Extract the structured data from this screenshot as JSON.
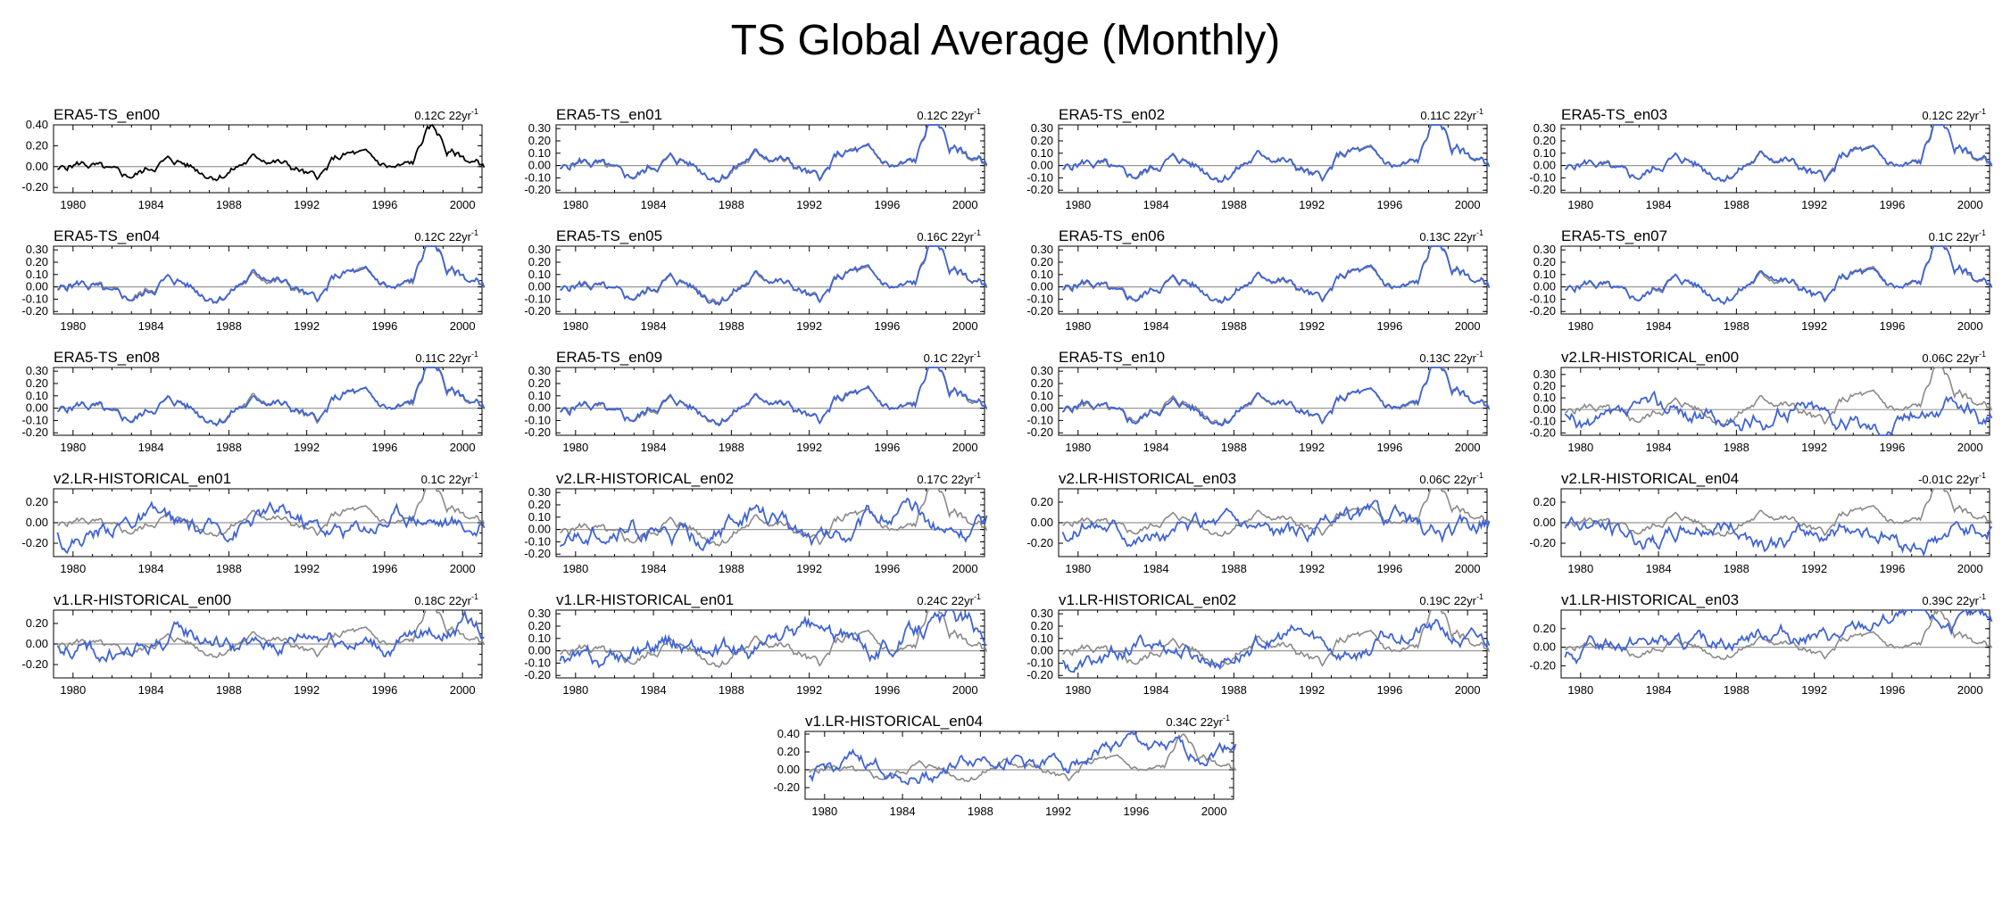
{
  "title": "TS Global Average (Monthly)",
  "colors": {
    "ens": "#3f63d6",
    "ref": "#8a8a8a",
    "era": "#000000",
    "zero": "#999999"
  },
  "chart_data": {
    "type": "line",
    "x_range": [
      1979,
      2001
    ],
    "x_ticks": [
      1980,
      1984,
      1988,
      1992,
      1996,
      2000
    ],
    "panels": [
      {
        "name": "ERA5-TS_en00",
        "trend": "0.12C 22yr",
        "trend_sup": "-1",
        "ylim": [
          -0.25,
          0.4
        ],
        "yticks": [
          -0.2,
          0,
          0.2,
          0.4
        ],
        "ytick_labels": [
          "-0.20",
          "0.00",
          "0.20",
          "0.40"
        ],
        "style": "era",
        "seed": 11,
        "amp": 0.08,
        "offset": 0.0
      },
      {
        "name": "ERA5-TS_en01",
        "trend": "0.12C 22yr",
        "trend_sup": "-1",
        "ylim": [
          -0.22,
          0.33
        ],
        "yticks": [
          -0.2,
          -0.1,
          0,
          0.1,
          0.2,
          0.3
        ],
        "ytick_labels": [
          "-0.20",
          "-0.10",
          "0.00",
          "0.10",
          "0.20",
          "0.30"
        ],
        "style": "era-ens",
        "seed": 12,
        "amp": 0.03,
        "offset": 0.0
      },
      {
        "name": "ERA5-TS_en02",
        "trend": "0.11C 22yr",
        "trend_sup": "-1",
        "ylim": [
          -0.22,
          0.33
        ],
        "yticks": [
          -0.2,
          -0.1,
          0,
          0.1,
          0.2,
          0.3
        ],
        "ytick_labels": [
          "-0.20",
          "-0.10",
          "0.00",
          "0.10",
          "0.20",
          "0.30"
        ],
        "style": "era-ens",
        "seed": 13,
        "amp": 0.03,
        "offset": 0.0
      },
      {
        "name": "ERA5-TS_en03",
        "trend": "0.12C 22yr",
        "trend_sup": "-1",
        "ylim": [
          -0.22,
          0.33
        ],
        "yticks": [
          -0.2,
          -0.1,
          0,
          0.1,
          0.2,
          0.3
        ],
        "ytick_labels": [
          "-0.20",
          "-0.10",
          "0.00",
          "0.10",
          "0.20",
          "0.30"
        ],
        "style": "era-ens",
        "seed": 14,
        "amp": 0.03,
        "offset": 0.0
      },
      {
        "name": "ERA5-TS_en04",
        "trend": "0.12C 22yr",
        "trend_sup": "-1",
        "ylim": [
          -0.22,
          0.33
        ],
        "yticks": [
          -0.2,
          -0.1,
          0,
          0.1,
          0.2,
          0.3
        ],
        "ytick_labels": [
          "-0.20",
          "-0.10",
          "0.00",
          "0.10",
          "0.20",
          "0.30"
        ],
        "style": "era-ens",
        "seed": 15,
        "amp": 0.03,
        "offset": 0.0
      },
      {
        "name": "ERA5-TS_en05",
        "trend": "0.16C 22yr",
        "trend_sup": "-1",
        "ylim": [
          -0.22,
          0.33
        ],
        "yticks": [
          -0.2,
          -0.1,
          0,
          0.1,
          0.2,
          0.3
        ],
        "ytick_labels": [
          "-0.20",
          "-0.10",
          "0.00",
          "0.10",
          "0.20",
          "0.30"
        ],
        "style": "era-ens",
        "seed": 16,
        "amp": 0.03,
        "offset": 0.0
      },
      {
        "name": "ERA5-TS_en06",
        "trend": "0.13C 22yr",
        "trend_sup": "-1",
        "ylim": [
          -0.22,
          0.33
        ],
        "yticks": [
          -0.2,
          -0.1,
          0,
          0.1,
          0.2,
          0.3
        ],
        "ytick_labels": [
          "-0.20",
          "-0.10",
          "0.00",
          "0.10",
          "0.20",
          "0.30"
        ],
        "style": "era-ens",
        "seed": 17,
        "amp": 0.03,
        "offset": 0.0
      },
      {
        "name": "ERA5-TS_en07",
        "trend": "0.1C 22yr",
        "trend_sup": "-1",
        "ylim": [
          -0.22,
          0.33
        ],
        "yticks": [
          -0.2,
          -0.1,
          0,
          0.1,
          0.2,
          0.3
        ],
        "ytick_labels": [
          "-0.20",
          "-0.10",
          "0.00",
          "0.10",
          "0.20",
          "0.30"
        ],
        "style": "era-ens",
        "seed": 18,
        "amp": 0.03,
        "offset": 0.0
      },
      {
        "name": "ERA5-TS_en08",
        "trend": "0.11C 22yr",
        "trend_sup": "-1",
        "ylim": [
          -0.22,
          0.33
        ],
        "yticks": [
          -0.2,
          -0.1,
          0,
          0.1,
          0.2,
          0.3
        ],
        "ytick_labels": [
          "-0.20",
          "-0.10",
          "0.00",
          "0.10",
          "0.20",
          "0.30"
        ],
        "style": "era-ens",
        "seed": 19,
        "amp": 0.03,
        "offset": 0.0
      },
      {
        "name": "ERA5-TS_en09",
        "trend": "0.1C 22yr",
        "trend_sup": "-1",
        "ylim": [
          -0.22,
          0.33
        ],
        "yticks": [
          -0.2,
          -0.1,
          0,
          0.1,
          0.2,
          0.3
        ],
        "ytick_labels": [
          "-0.20",
          "-0.10",
          "0.00",
          "0.10",
          "0.20",
          "0.30"
        ],
        "style": "era-ens",
        "seed": 20,
        "amp": 0.03,
        "offset": 0.0
      },
      {
        "name": "ERA5-TS_en10",
        "trend": "0.13C 22yr",
        "trend_sup": "-1",
        "ylim": [
          -0.22,
          0.33
        ],
        "yticks": [
          -0.2,
          -0.1,
          0,
          0.1,
          0.2,
          0.3
        ],
        "ytick_labels": [
          "-0.20",
          "-0.10",
          "0.00",
          "0.10",
          "0.20",
          "0.30"
        ],
        "style": "era-ens",
        "seed": 21,
        "amp": 0.03,
        "offset": 0.0
      },
      {
        "name": "v2.LR-HISTORICAL_en00",
        "trend": "0.06C 22yr",
        "trend_sup": "-1",
        "ylim": [
          -0.22,
          0.36
        ],
        "yticks": [
          -0.2,
          -0.1,
          0,
          0.1,
          0.2,
          0.3
        ],
        "ytick_labels": [
          "-0.20",
          "-0.10",
          "0.00",
          "0.10",
          "0.20",
          "0.30"
        ],
        "style": "model",
        "seed": 22,
        "amp": 0.09,
        "offset": 0.0
      },
      {
        "name": "v2.LR-HISTORICAL_en01",
        "trend": "0.1C 22yr",
        "trend_sup": "-1",
        "ylim": [
          -0.33,
          0.33
        ],
        "yticks": [
          -0.2,
          0,
          0.2
        ],
        "ytick_labels": [
          "-0.20",
          "0.00",
          "0.20"
        ],
        "style": "model",
        "seed": 23,
        "amp": 0.1,
        "offset": 0.02
      },
      {
        "name": "v2.LR-HISTORICAL_en02",
        "trend": "0.17C 22yr",
        "trend_sup": "-1",
        "ylim": [
          -0.22,
          0.33
        ],
        "yticks": [
          -0.2,
          -0.1,
          0,
          0.1,
          0.2,
          0.3
        ],
        "ytick_labels": [
          "-0.20",
          "-0.10",
          "0.00",
          "0.10",
          "0.20",
          "0.30"
        ],
        "style": "model",
        "seed": 24,
        "amp": 0.09,
        "offset": 0.0
      },
      {
        "name": "v2.LR-HISTORICAL_en03",
        "trend": "0.06C 22yr",
        "trend_sup": "-1",
        "ylim": [
          -0.33,
          0.33
        ],
        "yticks": [
          -0.2,
          0,
          0.2
        ],
        "ytick_labels": [
          "-0.20",
          "0.00",
          "0.20"
        ],
        "style": "model",
        "seed": 25,
        "amp": 0.1,
        "offset": 0.0
      },
      {
        "name": "v2.LR-HISTORICAL_en04",
        "trend": "-0.01C 22yr",
        "trend_sup": "-1",
        "ylim": [
          -0.33,
          0.33
        ],
        "yticks": [
          -0.2,
          0,
          0.2
        ],
        "ytick_labels": [
          "-0.20",
          "0.00",
          "0.20"
        ],
        "style": "model",
        "seed": 26,
        "amp": 0.1,
        "offset": -0.02
      },
      {
        "name": "v1.LR-HISTORICAL_en00",
        "trend": "0.18C 22yr",
        "trend_sup": "-1",
        "ylim": [
          -0.33,
          0.33
        ],
        "yticks": [
          -0.2,
          0,
          0.2
        ],
        "ytick_labels": [
          "-0.20",
          "0.00",
          "0.20"
        ],
        "style": "model",
        "seed": 27,
        "amp": 0.1,
        "offset": 0.02
      },
      {
        "name": "v1.LR-HISTORICAL_en01",
        "trend": "0.24C 22yr",
        "trend_sup": "-1",
        "ylim": [
          -0.22,
          0.33
        ],
        "yticks": [
          -0.2,
          -0.1,
          0,
          0.1,
          0.2,
          0.3
        ],
        "ytick_labels": [
          "-0.20",
          "-0.10",
          "0.00",
          "0.10",
          "0.20",
          "0.30"
        ],
        "style": "model",
        "seed": 28,
        "amp": 0.09,
        "offset": 0.02
      },
      {
        "name": "v1.LR-HISTORICAL_en02",
        "trend": "0.19C 22yr",
        "trend_sup": "-1",
        "ylim": [
          -0.22,
          0.33
        ],
        "yticks": [
          -0.2,
          -0.1,
          0,
          0.1,
          0.2,
          0.3
        ],
        "ytick_labels": [
          "-0.20",
          "-0.10",
          "0.00",
          "0.10",
          "0.20",
          "0.30"
        ],
        "style": "model",
        "seed": 29,
        "amp": 0.08,
        "offset": 0.02
      },
      {
        "name": "v1.LR-HISTORICAL_en03",
        "trend": "0.39C 22yr",
        "trend_sup": "-1",
        "ylim": [
          -0.33,
          0.4
        ],
        "yticks": [
          -0.2,
          0,
          0.2
        ],
        "ytick_labels": [
          "-0.20",
          "0.00",
          "0.20"
        ],
        "style": "model",
        "seed": 30,
        "amp": 0.1,
        "offset": 0.02
      },
      {
        "name": "v1.LR-HISTORICAL_en04",
        "trend": "0.34C 22yr",
        "trend_sup": "-1",
        "ylim": [
          -0.33,
          0.43
        ],
        "yticks": [
          -0.2,
          0,
          0.2,
          0.4
        ],
        "ytick_labels": [
          "-0.20",
          "0.00",
          "0.20",
          "0.40"
        ],
        "style": "model",
        "seed": 31,
        "amp": 0.1,
        "offset": 0.02
      }
    ]
  }
}
